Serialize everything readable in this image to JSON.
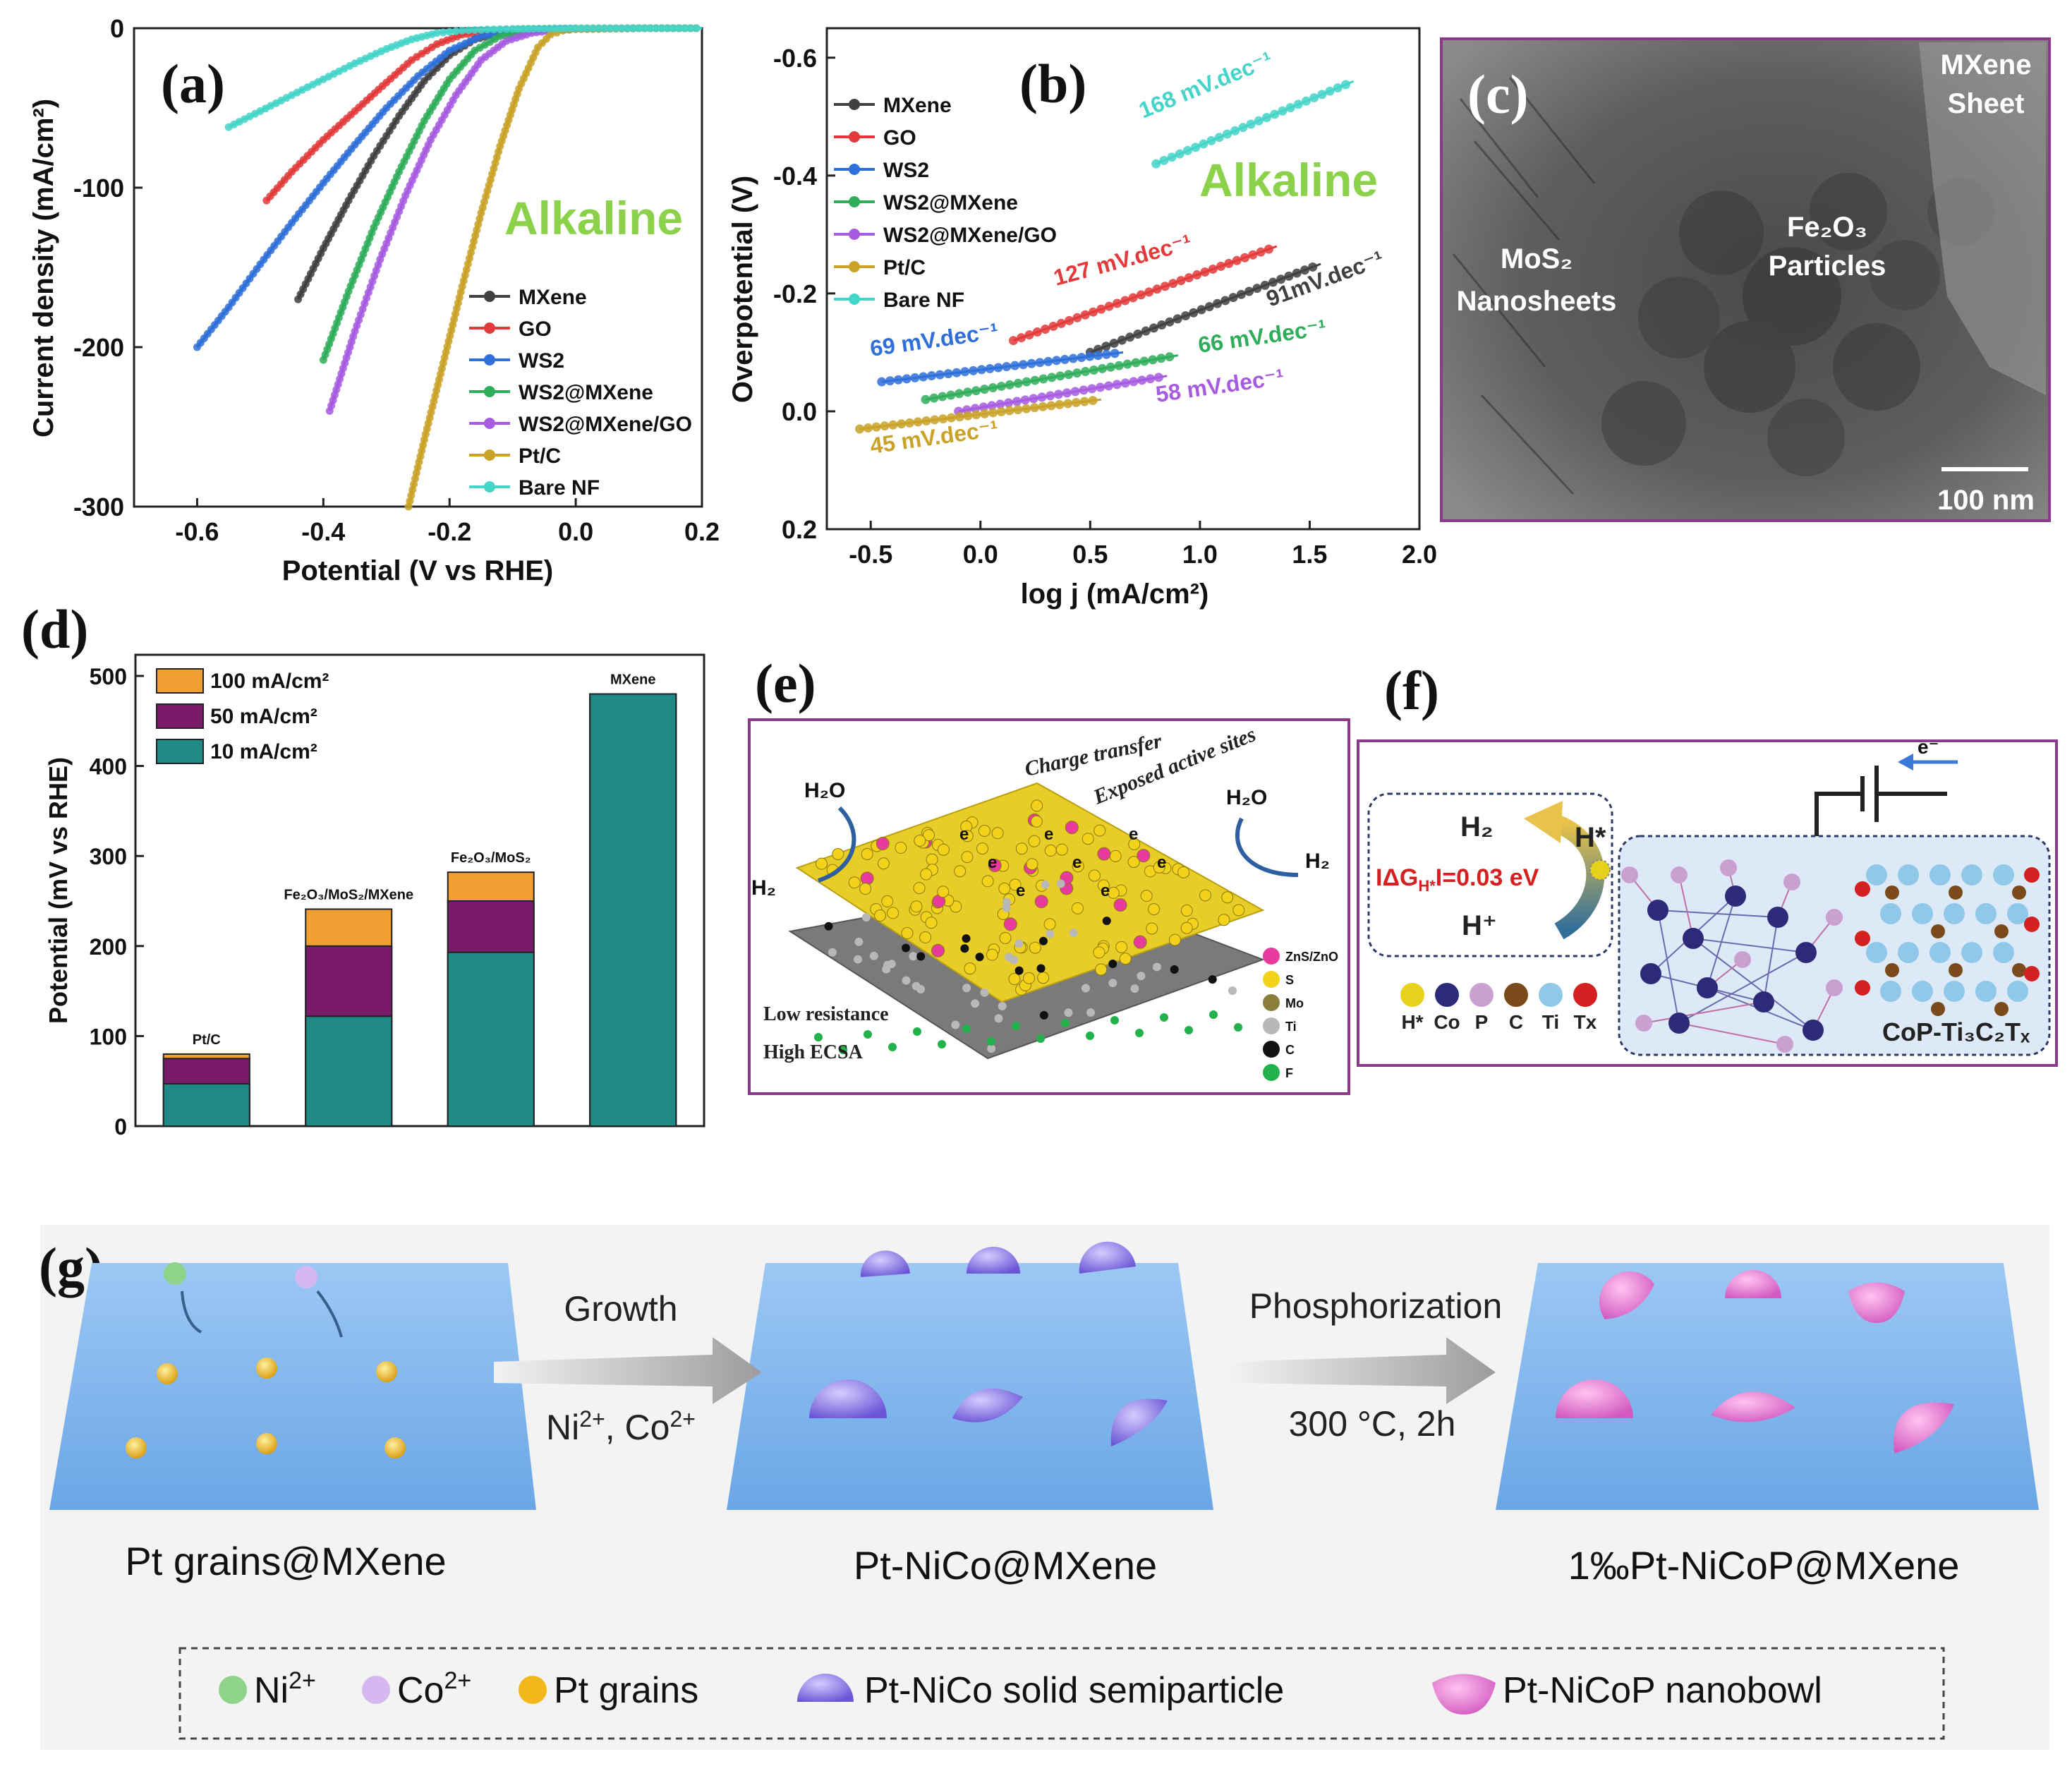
{
  "panel_labels": {
    "a": "(a)",
    "b": "(b)",
    "c": "(c)",
    "d": "(d)",
    "e": "(e)",
    "f": "(f)",
    "g": "(g)"
  },
  "colors": {
    "mxene": "#404040",
    "go": "#e23a3a",
    "ws2": "#2e6fd9",
    "ws2_mxene": "#2fad5a",
    "ws2_mxene_go": "#a65be0",
    "ptc": "#c9a227",
    "bare_nf": "#45d4c8",
    "alkaline": "#8bd24a",
    "bar_100": "#f0a030",
    "bar_50": "#7a1a6a",
    "bar_10": "#1f8a86",
    "frame": "#8b3a8b"
  },
  "chart_data": [
    {
      "id": "a",
      "type": "line",
      "annotation": "Alkaline",
      "xlabel": "Potential (V vs RHE)",
      "ylabel": "Current density (mA/cm²)",
      "xlim": [
        -0.7,
        0.2
      ],
      "ylim": [
        -300,
        0
      ],
      "xticks": [
        "-0.6",
        "-0.4",
        "-0.2",
        "0.0",
        "0.2"
      ],
      "xtick_values": [
        -0.6,
        -0.4,
        -0.2,
        0.0,
        0.2
      ],
      "yticks": [
        "0",
        "-100",
        "-200",
        "-300"
      ],
      "ytick_values": [
        0,
        -100,
        -200,
        -300
      ],
      "series": [
        {
          "name": "MXene",
          "key": "mxene",
          "x": [
            -0.44,
            -0.4,
            -0.36,
            -0.32,
            -0.28,
            -0.24,
            -0.2,
            -0.16,
            -0.12,
            -0.08,
            -0.04,
            0.0,
            0.1,
            0.2
          ],
          "y": [
            -170,
            -138,
            -108,
            -80,
            -55,
            -33,
            -17,
            -7,
            -3,
            -1.5,
            -0.8,
            -0.4,
            0,
            0
          ]
        },
        {
          "name": "GO",
          "key": "go",
          "x": [
            -0.49,
            -0.45,
            -0.4,
            -0.35,
            -0.3,
            -0.26,
            -0.22,
            -0.18,
            -0.14,
            -0.1,
            -0.05,
            0.0,
            0.1,
            0.2
          ],
          "y": [
            -108,
            -90,
            -70,
            -52,
            -34,
            -20,
            -10,
            -4,
            -2,
            -1,
            -0.5,
            -0.3,
            0,
            0
          ]
        },
        {
          "name": "WS2",
          "key": "ws2",
          "x": [
            -0.6,
            -0.55,
            -0.5,
            -0.45,
            -0.4,
            -0.35,
            -0.3,
            -0.25,
            -0.2,
            -0.15,
            -0.1,
            -0.05,
            0.0,
            0.1,
            0.2
          ],
          "y": [
            -200,
            -175,
            -148,
            -122,
            -97,
            -73,
            -50,
            -30,
            -14,
            -5,
            -2,
            -1,
            -0.5,
            0,
            0
          ]
        },
        {
          "name": "WS2@MXene",
          "key": "ws2_mxene",
          "x": [
            -0.4,
            -0.36,
            -0.32,
            -0.28,
            -0.24,
            -0.2,
            -0.16,
            -0.12,
            -0.08,
            -0.04,
            0.0,
            0.1,
            0.2
          ],
          "y": [
            -208,
            -165,
            -125,
            -90,
            -58,
            -32,
            -14,
            -5,
            -2,
            -1,
            -0.5,
            0,
            0
          ]
        },
        {
          "name": "WS2@MXene/GO",
          "key": "ws2_mxene_go",
          "x": [
            -0.39,
            -0.35,
            -0.31,
            -0.27,
            -0.23,
            -0.19,
            -0.15,
            -0.11,
            -0.07,
            -0.03,
            0.0,
            0.1,
            0.2
          ],
          "y": [
            -240,
            -190,
            -145,
            -105,
            -70,
            -42,
            -20,
            -8,
            -3,
            -1,
            -0.5,
            0,
            0
          ]
        },
        {
          "name": "Pt/C",
          "key": "ptc",
          "x": [
            -0.265,
            -0.24,
            -0.21,
            -0.18,
            -0.15,
            -0.12,
            -0.09,
            -0.06,
            -0.04,
            -0.02,
            0.0,
            0.1,
            0.2
          ],
          "y": [
            -300,
            -258,
            -210,
            -162,
            -116,
            -74,
            -38,
            -12,
            -4,
            -1.5,
            -0.5,
            0,
            0
          ]
        },
        {
          "name": "Bare NF",
          "key": "bare_nf",
          "x": [
            -0.55,
            -0.5,
            -0.45,
            -0.4,
            -0.35,
            -0.3,
            -0.26,
            -0.22,
            -0.18,
            -0.14,
            -0.1,
            -0.05,
            0.0,
            0.1,
            0.2
          ],
          "y": [
            -62,
            -52,
            -42,
            -32,
            -22,
            -13,
            -7,
            -3,
            -1.5,
            -0.8,
            -0.4,
            -0.2,
            0,
            0,
            0
          ]
        }
      ]
    },
    {
      "id": "b",
      "type": "line",
      "annotation": "Alkaline",
      "xlabel": "log j (mA/cm²)",
      "ylabel": "Overpotential (V)",
      "xlim": [
        -0.7,
        2.0
      ],
      "ylim": [
        0.2,
        -0.65
      ],
      "xticks": [
        "-0.5",
        "0.0",
        "0.5",
        "1.0",
        "1.5",
        "2.0"
      ],
      "xtick_values": [
        -0.5,
        0.0,
        0.5,
        1.0,
        1.5,
        2.0
      ],
      "yticks": [
        "-0.6",
        "-0.4",
        "-0.2",
        "0.0",
        "0.2"
      ],
      "ytick_values": [
        -0.6,
        -0.4,
        -0.2,
        0.0,
        0.2
      ],
      "series": [
        {
          "name": "MXene",
          "key": "mxene",
          "x": [
            0.5,
            1.55
          ],
          "y": [
            -0.1,
            -0.25
          ],
          "slope_label": "91mV.dec⁻¹"
        },
        {
          "name": "GO",
          "key": "go",
          "x": [
            0.15,
            1.35
          ],
          "y": [
            -0.12,
            -0.28
          ],
          "slope_label": "127 mV.dec⁻¹"
        },
        {
          "name": "WS2",
          "key": "ws2",
          "x": [
            -0.45,
            0.65
          ],
          "y": [
            -0.05,
            -0.1
          ],
          "slope_label": "69 mV.dec⁻¹"
        },
        {
          "name": "WS2@MXene",
          "key": "ws2_mxene",
          "x": [
            -0.25,
            0.9
          ],
          "y": [
            -0.02,
            -0.095
          ],
          "slope_label": "66 mV.dec⁻¹"
        },
        {
          "name": "WS2@MXene/GO",
          "key": "ws2_mxene_go",
          "x": [
            -0.1,
            0.85
          ],
          "y": [
            0.0,
            -0.06
          ],
          "slope_label": "58 mV.dec⁻¹"
        },
        {
          "name": "Pt/C",
          "key": "ptc",
          "x": [
            -0.55,
            0.55
          ],
          "y": [
            0.03,
            -0.02
          ],
          "slope_label": "45 mV.dec⁻¹"
        },
        {
          "name": "Bare NF",
          "key": "bare_nf",
          "x": [
            0.8,
            1.7
          ],
          "y": [
            -0.42,
            -0.56
          ],
          "slope_label": "168 mV.dec⁻¹"
        }
      ]
    },
    {
      "id": "d",
      "type": "bar",
      "ylabel": "Potential (mV vs RHE)",
      "ylim": [
        0,
        500
      ],
      "yticks": [
        "0",
        "100",
        "200",
        "300",
        "400",
        "500"
      ],
      "ytick_values": [
        0,
        100,
        200,
        300,
        400,
        500
      ],
      "categories": [
        "Pt/C",
        "Fe₂O₃/MoS₂/MXene",
        "Fe₂O₃/MoS₂",
        "MXene"
      ],
      "series": [
        {
          "name": "10 mA/cm²",
          "key": "bar_10",
          "values": [
            47,
            122,
            193,
            480
          ]
        },
        {
          "name": "50 mA/cm²",
          "key": "bar_50",
          "values": [
            75,
            200,
            250,
            480
          ]
        },
        {
          "name": "100 mA/cm²",
          "key": "bar_100",
          "values": [
            80,
            241,
            282,
            480
          ]
        }
      ]
    }
  ],
  "panel_c": {
    "labels": {
      "mxene_sheet_1": "MXene",
      "mxene_sheet_2": "Sheet",
      "mos2_1": "MoS₂",
      "mos2_2": "Nanosheets",
      "fe2o3_1": "Fe₂O₃",
      "fe2o3_2": "Particles"
    },
    "scale_bar": "100 nm"
  },
  "panel_e": {
    "top_labels": [
      "Charge transfer",
      "Exposed active sites"
    ],
    "water_left": "H₂O",
    "water_right": "H₂O",
    "h2_left": "H₂",
    "h2_right": "H₂",
    "electron": "e",
    "notes": [
      "Low resistance",
      "High ECSA"
    ],
    "legend": [
      {
        "label": "ZnS/ZnO",
        "color": "#e83a9c"
      },
      {
        "label": "S",
        "color": "#f2d21a"
      },
      {
        "label": "Mo",
        "color": "#8b7d3a"
      },
      {
        "label": "Ti",
        "color": "#b8b8b8"
      },
      {
        "label": "C",
        "color": "#111111"
      },
      {
        "label": "F",
        "color": "#22b24c"
      }
    ]
  },
  "panel_f": {
    "electron": "e⁻",
    "h2": "H₂",
    "h_star": "H*",
    "h_plus": "H⁺",
    "delta_g": "IΔG",
    "delta_g_sub": "H*",
    "delta_g_value": "I=0.03 eV",
    "atom_legend": [
      {
        "label": "H*",
        "color": "#e6d21a"
      },
      {
        "label": "Co",
        "color": "#2b2b7a"
      },
      {
        "label": "P",
        "color": "#c9a0d0"
      },
      {
        "label": "C",
        "color": "#7a4a1a"
      },
      {
        "label": "Ti",
        "color": "#8fc8e8"
      },
      {
        "label": "Tx",
        "color": "#d42020"
      }
    ],
    "material": "CoP-Ti₃C₂Tₓ"
  },
  "panel_g": {
    "step1_label": "Pt grains@MXene",
    "step2_label": "Pt-NiCo@MXene",
    "step3_label": "1‰Pt-NiCoP@MXene",
    "arrow1_top": "Growth",
    "arrow1_bottom_1": "Ni",
    "arrow1_bottom_sup1": "2+",
    "arrow1_bottom_2": ", Co",
    "arrow1_bottom_sup2": "2+",
    "arrow2_top": "Phosphorization",
    "arrow2_bottom": "300 °C, 2h",
    "legend": [
      {
        "label": "Ni",
        "sup": "2+",
        "color": "#8fd28a"
      },
      {
        "label": "Co",
        "sup": "2+",
        "color": "#d6b8f0"
      },
      {
        "label": "Pt grains",
        "sup": "",
        "color": "#f2b81a"
      },
      {
        "label": "Pt-NiCo solid semiparticle",
        "sup": "",
        "color": "#9a86e8"
      },
      {
        "label": "Pt-NiCoP nanobowl",
        "sup": "",
        "color": "#e88ad6"
      }
    ]
  }
}
